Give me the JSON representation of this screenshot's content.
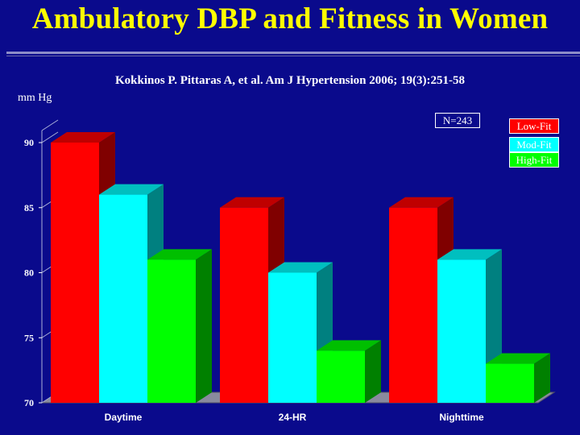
{
  "title": "Ambulatory DBP and Fitness in Women",
  "citation": "Kokkinos P. Pittaras A, et al. Am J Hypertension 2006; 19(3):251-58",
  "unit_label": "mm Hg",
  "note": "N=243",
  "colors": {
    "background": "#0a0a8c",
    "title": "#ffff00",
    "low_fit": "#ff0000",
    "mod_fit": "#00ffff",
    "high_fit": "#00ff00"
  },
  "chart_data": {
    "type": "bar",
    "categories": [
      "Daytime",
      "24-HR",
      "Nighttime"
    ],
    "series": [
      {
        "name": "Low-Fit",
        "values": [
          90,
          85,
          85
        ]
      },
      {
        "name": "Mod-Fit",
        "values": [
          86,
          80,
          81
        ]
      },
      {
        "name": "High-Fit",
        "values": [
          81,
          74,
          73
        ]
      }
    ],
    "yticks": [
      70,
      75,
      80,
      85,
      90
    ],
    "ylim": [
      70,
      90
    ],
    "ylabel": "mm Hg",
    "legend": "top-right",
    "style": "3d"
  }
}
